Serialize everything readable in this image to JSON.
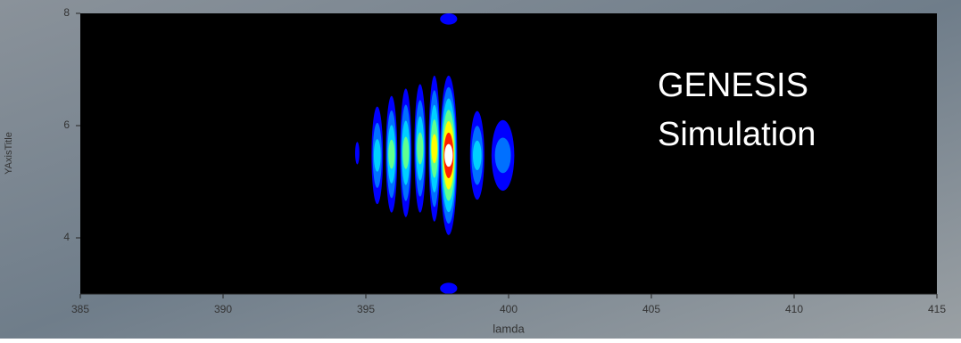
{
  "chart_data": {
    "type": "contour",
    "annotation": [
      "GENESIS",
      "Simulation"
    ],
    "x_label": "lamda",
    "y_label": "YAxisTitle",
    "xlim": [
      385,
      415
    ],
    "xticks": [
      385,
      390,
      395,
      400,
      405,
      410,
      415
    ],
    "ylim": [
      3,
      8
    ],
    "yticks": [
      4,
      6,
      8
    ],
    "x": [
      394.7,
      395.4,
      395.9,
      396.4,
      396.9,
      397.4,
      397.9,
      398.9,
      399.8,
      397.9,
      397.9
    ],
    "widths": [
      0.15,
      0.4,
      0.4,
      0.4,
      0.4,
      0.4,
      0.6,
      0.5,
      0.8,
      0.6,
      0.6
    ],
    "ylow": [
      5.31,
      4.6,
      4.45,
      4.37,
      4.45,
      4.29,
      4.05,
      4.68,
      4.84,
      7.8,
      3.0
    ],
    "yhigh": [
      5.71,
      6.34,
      6.53,
      6.66,
      6.74,
      6.89,
      6.89,
      6.26,
      6.1,
      8.0,
      3.2
    ],
    "levels": [
      1,
      3,
      4,
      4,
      4,
      5,
      7,
      3,
      2,
      1,
      1
    ],
    "level_colors": [
      "#0000ff",
      "#0070ff",
      "#00d0ff",
      "#60ff90",
      "#ffff00",
      "#ff2000",
      "#ffffff"
    ],
    "background": "#000000"
  }
}
